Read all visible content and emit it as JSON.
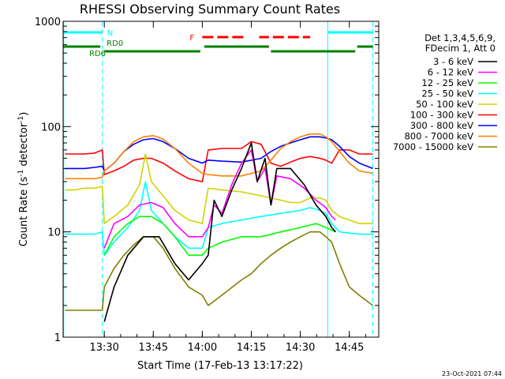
{
  "chart_data": {
    "type": "line",
    "title": "RHESSI Observing Summary Count Rates",
    "xlabel": "Start Time (17-Feb-13 13:17:22)",
    "ylabel_main": "Count Rate (s",
    "ylabel_sup1": "-1",
    "ylabel_mid": " detector",
    "ylabel_sup2": "-1",
    "ylabel_end": ")",
    "y_scale": "log",
    "ylim": [
      1,
      1000
    ],
    "xlim": [
      13.29,
      14.9
    ],
    "x_ticks": [
      {
        "value": 13.5,
        "label": "13:30"
      },
      {
        "value": 13.75,
        "label": "13:45"
      },
      {
        "value": 14.0,
        "label": "14:00"
      },
      {
        "value": 14.25,
        "label": "14:15"
      },
      {
        "value": 14.5,
        "label": "14:30"
      },
      {
        "value": 14.75,
        "label": "14:45"
      }
    ],
    "y_ticks": [
      {
        "value": 1,
        "label": "1"
      },
      {
        "value": 10,
        "label": "10"
      },
      {
        "value": 100,
        "label": "100"
      },
      {
        "value": 1000,
        "label": "1000"
      }
    ],
    "legend_header": [
      "Det 1,3,4,5,6,9,",
      "FDecim 1, Att 0"
    ],
    "legend_placement": "outside-right",
    "series": [
      {
        "name": "3 - 6 keV",
        "color": "#000000",
        "points": [
          [
            13.5,
            1.4
          ],
          [
            13.55,
            3
          ],
          [
            13.62,
            6
          ],
          [
            13.7,
            9
          ],
          [
            13.78,
            9
          ],
          [
            13.86,
            5
          ],
          [
            13.93,
            3.5
          ],
          [
            14.0,
            5
          ],
          [
            14.03,
            6
          ],
          [
            14.06,
            20
          ],
          [
            14.1,
            14
          ],
          [
            14.15,
            25
          ],
          [
            14.2,
            40
          ],
          [
            14.25,
            70
          ],
          [
            14.28,
            30
          ],
          [
            14.32,
            50
          ],
          [
            14.35,
            18
          ],
          [
            14.38,
            40
          ],
          [
            14.45,
            40
          ],
          [
            14.52,
            28
          ],
          [
            14.58,
            18
          ],
          [
            14.63,
            14
          ],
          [
            14.66,
            11
          ],
          [
            14.68,
            10
          ]
        ]
      },
      {
        "name": "6 - 12 keV",
        "color": "#ff00ff",
        "points": [
          [
            13.5,
            7
          ],
          [
            13.55,
            12
          ],
          [
            13.62,
            14
          ],
          [
            13.68,
            18
          ],
          [
            13.74,
            19
          ],
          [
            13.8,
            17
          ],
          [
            13.86,
            12
          ],
          [
            13.93,
            9
          ],
          [
            14.0,
            9
          ],
          [
            14.03,
            11
          ],
          [
            14.06,
            18
          ],
          [
            14.1,
            15
          ],
          [
            14.15,
            28
          ],
          [
            14.2,
            45
          ],
          [
            14.25,
            60
          ],
          [
            14.28,
            30
          ],
          [
            14.32,
            40
          ],
          [
            14.35,
            18
          ],
          [
            14.38,
            34
          ],
          [
            14.45,
            32
          ],
          [
            14.52,
            26
          ],
          [
            14.58,
            20
          ],
          [
            14.63,
            17
          ],
          [
            14.66,
            14
          ],
          [
            14.68,
            13
          ]
        ]
      },
      {
        "name": "12 - 25 keV",
        "color": "#00ff00",
        "points": [
          [
            13.5,
            6
          ],
          [
            13.55,
            9
          ],
          [
            13.62,
            12
          ],
          [
            13.68,
            14
          ],
          [
            13.74,
            14
          ],
          [
            13.8,
            12
          ],
          [
            13.86,
            9
          ],
          [
            13.93,
            6
          ],
          [
            14.0,
            6
          ],
          [
            14.03,
            7
          ],
          [
            14.1,
            8
          ],
          [
            14.2,
            9
          ],
          [
            14.3,
            9
          ],
          [
            14.4,
            10
          ],
          [
            14.5,
            11
          ],
          [
            14.58,
            12
          ],
          [
            14.63,
            11
          ],
          [
            14.68,
            10
          ]
        ]
      },
      {
        "name": "25 - 50 keV",
        "color": "#00ffff",
        "points": [
          [
            13.3,
            9.5
          ],
          [
            13.35,
            9.5
          ],
          [
            13.4,
            9.5
          ],
          [
            13.45,
            9.5
          ],
          [
            13.49,
            10
          ],
          [
            13.5,
            6
          ],
          [
            13.55,
            8
          ],
          [
            13.62,
            11
          ],
          [
            13.68,
            16
          ],
          [
            13.71,
            30
          ],
          [
            13.74,
            16
          ],
          [
            13.8,
            12
          ],
          [
            13.86,
            9
          ],
          [
            13.93,
            7
          ],
          [
            14.0,
            7
          ],
          [
            14.03,
            11
          ],
          [
            14.1,
            12
          ],
          [
            14.2,
            13
          ],
          [
            14.3,
            14
          ],
          [
            14.4,
            15
          ],
          [
            14.5,
            16
          ],
          [
            14.55,
            17
          ],
          [
            14.6,
            16
          ],
          [
            14.63,
            15
          ],
          [
            14.66,
            12
          ],
          [
            14.7,
            10
          ],
          [
            14.8,
            9.5
          ],
          [
            14.87,
            9.5
          ]
        ]
      },
      {
        "name": "50 - 100 keV",
        "color": "#d2d200",
        "points": [
          [
            13.3,
            25
          ],
          [
            13.35,
            25
          ],
          [
            13.4,
            26
          ],
          [
            13.45,
            26
          ],
          [
            13.49,
            27
          ],
          [
            13.5,
            12
          ],
          [
            13.55,
            14
          ],
          [
            13.62,
            18
          ],
          [
            13.68,
            28
          ],
          [
            13.71,
            55
          ],
          [
            13.74,
            30
          ],
          [
            13.8,
            22
          ],
          [
            13.86,
            16
          ],
          [
            13.93,
            13
          ],
          [
            14.0,
            12
          ],
          [
            14.03,
            26
          ],
          [
            14.1,
            25
          ],
          [
            14.2,
            24
          ],
          [
            14.3,
            22
          ],
          [
            14.4,
            20
          ],
          [
            14.45,
            19
          ],
          [
            14.5,
            19
          ],
          [
            14.55,
            21
          ],
          [
            14.6,
            21
          ],
          [
            14.63,
            20
          ],
          [
            14.66,
            16
          ],
          [
            14.7,
            14
          ],
          [
            14.8,
            12
          ],
          [
            14.87,
            12
          ]
        ]
      },
      {
        "name": "100 - 300 keV",
        "color": "#ff0000",
        "points": [
          [
            13.3,
            55
          ],
          [
            13.35,
            55
          ],
          [
            13.4,
            55
          ],
          [
            13.45,
            56
          ],
          [
            13.49,
            60
          ],
          [
            13.5,
            35
          ],
          [
            13.55,
            38
          ],
          [
            13.6,
            42
          ],
          [
            13.65,
            48
          ],
          [
            13.7,
            50
          ],
          [
            13.74,
            50
          ],
          [
            13.8,
            45
          ],
          [
            13.86,
            38
          ],
          [
            13.93,
            32
          ],
          [
            14.0,
            30
          ],
          [
            14.03,
            60
          ],
          [
            14.1,
            62
          ],
          [
            14.2,
            62
          ],
          [
            14.25,
            72
          ],
          [
            14.3,
            68
          ],
          [
            14.35,
            45
          ],
          [
            14.4,
            42
          ],
          [
            14.45,
            46
          ],
          [
            14.5,
            50
          ],
          [
            14.55,
            52
          ],
          [
            14.6,
            50
          ],
          [
            14.63,
            48
          ],
          [
            14.66,
            45
          ],
          [
            14.7,
            60
          ],
          [
            14.75,
            60
          ],
          [
            14.8,
            55
          ],
          [
            14.87,
            55
          ]
        ]
      },
      {
        "name": "300 - 800 keV",
        "color": "#0000ff",
        "points": [
          [
            13.3,
            40
          ],
          [
            13.35,
            40
          ],
          [
            13.4,
            40
          ],
          [
            13.45,
            41
          ],
          [
            13.49,
            42
          ],
          [
            13.5,
            38
          ],
          [
            13.55,
            45
          ],
          [
            13.6,
            58
          ],
          [
            13.65,
            68
          ],
          [
            13.7,
            75
          ],
          [
            13.75,
            77
          ],
          [
            13.8,
            72
          ],
          [
            13.86,
            62
          ],
          [
            13.93,
            50
          ],
          [
            14.0,
            45
          ],
          [
            14.03,
            48
          ],
          [
            14.1,
            47
          ],
          [
            14.2,
            46
          ],
          [
            14.3,
            50
          ],
          [
            14.35,
            58
          ],
          [
            14.4,
            65
          ],
          [
            14.45,
            70
          ],
          [
            14.5,
            75
          ],
          [
            14.55,
            80
          ],
          [
            14.6,
            80
          ],
          [
            14.63,
            78
          ],
          [
            14.66,
            75
          ],
          [
            14.7,
            65
          ],
          [
            14.75,
            52
          ],
          [
            14.8,
            45
          ],
          [
            14.87,
            40
          ]
        ]
      },
      {
        "name": "800 - 7000 keV",
        "color": "#ff8000",
        "points": [
          [
            13.3,
            32
          ],
          [
            13.35,
            32
          ],
          [
            13.4,
            32
          ],
          [
            13.45,
            32
          ],
          [
            13.49,
            33
          ],
          [
            13.5,
            38
          ],
          [
            13.55,
            45
          ],
          [
            13.6,
            58
          ],
          [
            13.65,
            72
          ],
          [
            13.7,
            80
          ],
          [
            13.75,
            82
          ],
          [
            13.8,
            76
          ],
          [
            13.86,
            62
          ],
          [
            13.93,
            45
          ],
          [
            14.0,
            36
          ],
          [
            14.03,
            35
          ],
          [
            14.1,
            34
          ],
          [
            14.2,
            34
          ],
          [
            14.3,
            38
          ],
          [
            14.35,
            48
          ],
          [
            14.4,
            62
          ],
          [
            14.45,
            72
          ],
          [
            14.5,
            80
          ],
          [
            14.55,
            85
          ],
          [
            14.6,
            85
          ],
          [
            14.63,
            80
          ],
          [
            14.66,
            72
          ],
          [
            14.7,
            58
          ],
          [
            14.75,
            45
          ],
          [
            14.8,
            38
          ],
          [
            14.87,
            36
          ]
        ]
      },
      {
        "name": "7000 - 15000 keV",
        "color": "#808000",
        "points": [
          [
            13.3,
            1.8
          ],
          [
            13.35,
            1.8
          ],
          [
            13.4,
            1.8
          ],
          [
            13.45,
            1.8
          ],
          [
            13.49,
            1.8
          ],
          [
            13.5,
            3
          ],
          [
            13.55,
            4.5
          ],
          [
            13.6,
            6
          ],
          [
            13.65,
            7.5
          ],
          [
            13.7,
            9
          ],
          [
            13.75,
            9
          ],
          [
            13.8,
            7
          ],
          [
            13.86,
            4.5
          ],
          [
            13.93,
            3
          ],
          [
            14.0,
            2.5
          ],
          [
            14.03,
            2
          ],
          [
            14.1,
            2.5
          ],
          [
            14.2,
            3.5
          ],
          [
            14.25,
            4
          ],
          [
            14.3,
            5
          ],
          [
            14.35,
            6
          ],
          [
            14.4,
            7
          ],
          [
            14.45,
            8
          ],
          [
            14.5,
            9
          ],
          [
            14.55,
            10
          ],
          [
            14.6,
            10
          ],
          [
            14.63,
            9
          ],
          [
            14.66,
            8
          ],
          [
            14.7,
            5
          ],
          [
            14.75,
            3
          ],
          [
            14.8,
            2.5
          ],
          [
            14.87,
            2
          ]
        ]
      }
    ],
    "status_bars": {
      "night_label": "N",
      "flare_label": "F",
      "saa_labels": [
        "RD6",
        "RD0"
      ],
      "night": [
        [
          13.29,
          13.49
        ],
        [
          14.64,
          14.87
        ]
      ],
      "flare": [
        [
          14.0,
          14.22
        ],
        [
          14.29,
          14.34
        ],
        [
          14.36,
          14.55
        ]
      ],
      "saa": [
        [
          13.29,
          13.48
        ],
        [
          13.5,
          13.99
        ],
        [
          14.01,
          14.34
        ],
        [
          14.35,
          14.78
        ],
        [
          14.79,
          14.87
        ]
      ],
      "colors": {
        "night": "#00ffff",
        "flare": "#ff0000",
        "saa": "#008000"
      },
      "vertical_markers": [
        {
          "x": 13.49,
          "style": "dashed",
          "color": "#00ffff"
        },
        {
          "x": 14.64,
          "style": "solid",
          "color": "#00ffff"
        },
        {
          "x": 14.87,
          "style": "dashed",
          "color": "#00ffff"
        },
        {
          "x": 13.293,
          "style": "solid",
          "color": "#00ffff"
        }
      ]
    },
    "grid": false
  },
  "timestamp": "23-Oct-2021 07:44"
}
